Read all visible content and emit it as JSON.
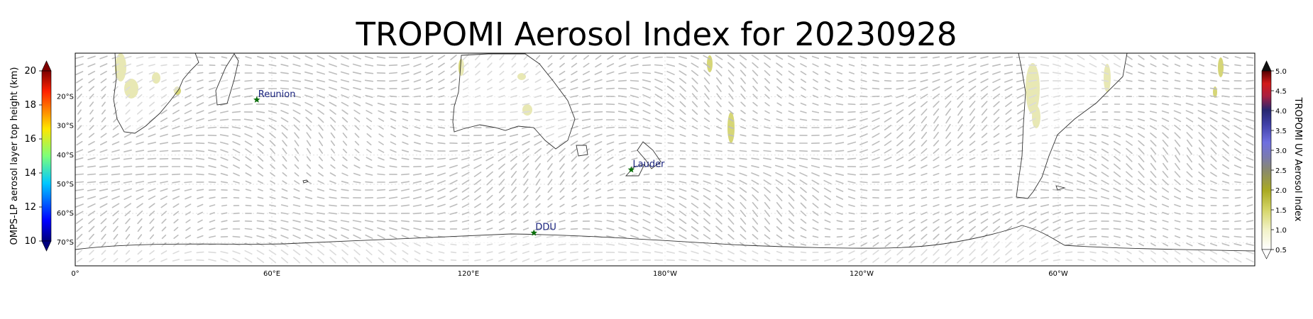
{
  "title": "TROPOMI Aerosol Index for 20230928",
  "map": {
    "projection": "PlateCarree centered 180",
    "lon_range": [
      0,
      360
    ],
    "lat_range": [
      -78,
      -5
    ],
    "lat_ticks": [
      "20°S",
      "30°S",
      "40°S",
      "50°S",
      "60°S",
      "70°S"
    ],
    "lon_ticks": [
      "0°",
      "60°E",
      "120°E",
      "180°W",
      "120°W",
      "60°W"
    ],
    "stations": [
      {
        "name": "Reunion",
        "lon": 55.4,
        "lat": -21.0
      },
      {
        "name": "Lauder",
        "lon": 169.7,
        "lat": -45.0
      },
      {
        "name": "DDU",
        "lon": 140.0,
        "lat": -66.7
      }
    ],
    "station_marker_color": "#0a6e0a",
    "station_label_color": "#1a237e",
    "wind_vector_color": "#bdbdbd",
    "aerosol_patch_color": "#c8c84a"
  },
  "left_colorbar": {
    "label": "OMPS-LP aerosol layer top height (km)",
    "ticks": [
      "20",
      "18",
      "16",
      "14",
      "12",
      "10"
    ],
    "range": [
      10,
      20
    ],
    "colormap": "jet"
  },
  "right_colorbar": {
    "label": "TROPOMI UV Aerosol Index",
    "ticks": [
      "5.0",
      "4.5",
      "4.0",
      "3.5",
      "3.0",
      "2.5",
      "2.0",
      "1.5",
      "1.0",
      "0.5"
    ],
    "range": [
      0.5,
      5.0
    ]
  }
}
